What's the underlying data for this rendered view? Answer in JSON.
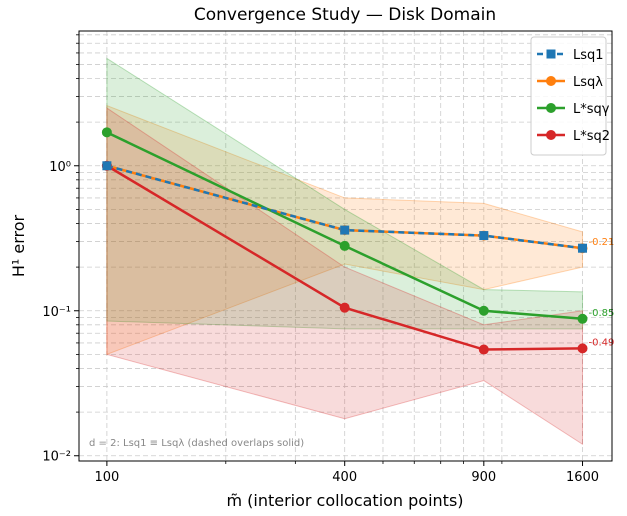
{
  "chart_data": {
    "type": "line",
    "title": "Convergence Study — Disk Domain",
    "xlabel": "m̃ (interior collocation points)",
    "ylabel": "H¹ error",
    "x_scale": "log",
    "y_scale": "log",
    "xlim": [
      85,
      1900
    ],
    "ylim": [
      0.0092,
      8.5
    ],
    "x": [
      100,
      400,
      900,
      1600
    ],
    "x_tick_labels": [
      "100",
      "400",
      "900",
      "1600"
    ],
    "y_ticks": [
      0.01,
      0.1,
      1
    ],
    "y_tick_labels": [
      "10⁻²",
      "10⁻¹",
      "10⁰"
    ],
    "grid": true,
    "legend": "top-right",
    "series": [
      {
        "name": "Lsq1",
        "color": "#1f77b4",
        "marker": "square",
        "dashed": true,
        "values": [
          1.0,
          0.36,
          0.33,
          0.27
        ],
        "band_lower": null,
        "band_upper": null,
        "slope_label": null
      },
      {
        "name": "Lsqλ",
        "color": "#ff7f0e",
        "marker": "circle",
        "dashed": false,
        "values": [
          1.0,
          0.36,
          0.33,
          0.27
        ],
        "band_lower": [
          0.05,
          0.21,
          0.14,
          0.2
        ],
        "band_upper": [
          2.6,
          0.6,
          0.55,
          0.35
        ],
        "slope_label": "-0.21"
      },
      {
        "name": "L*sqγ",
        "color": "#2ca02c",
        "marker": "circle",
        "dashed": false,
        "values": [
          1.7,
          0.28,
          0.1,
          0.088
        ],
        "band_lower": [
          0.085,
          0.075,
          0.075,
          0.075
        ],
        "band_upper": [
          5.5,
          0.5,
          0.14,
          0.135
        ],
        "slope_label": "-0.85"
      },
      {
        "name": "L*sq2",
        "color": "#d62728",
        "marker": "circle",
        "dashed": false,
        "values": [
          1.0,
          0.105,
          0.054,
          0.055
        ],
        "band_lower": [
          0.05,
          0.018,
          0.033,
          0.012
        ],
        "band_upper": [
          2.5,
          0.2,
          0.08,
          0.1
        ],
        "slope_label": "-0.49"
      }
    ],
    "annotation": "d = 2: Lsq1 ≡ Lsqλ (dashed overlaps solid)"
  }
}
